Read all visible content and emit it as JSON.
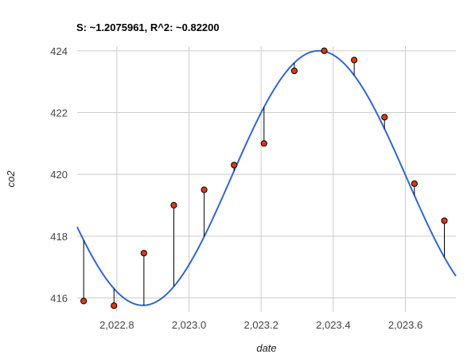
{
  "chart_data": {
    "type": "scatter",
    "title": "S: ~1.2075961, R^2: ~0.82200",
    "xlabel": "date",
    "ylabel": "co2",
    "xlim": [
      2022.69,
      2023.74
    ],
    "ylim": [
      415.55,
      424.15
    ],
    "x_ticks": [
      {
        "value": 2022.8,
        "label": "2,022.8"
      },
      {
        "value": 2023.0,
        "label": "2,023.0"
      },
      {
        "value": 2023.2,
        "label": "2,023.2"
      },
      {
        "value": 2023.4,
        "label": "2,023.4"
      },
      {
        "value": 2023.6,
        "label": "2,023.6"
      }
    ],
    "y_ticks": [
      {
        "value": 416,
        "label": "416"
      },
      {
        "value": 418,
        "label": "418"
      },
      {
        "value": 420,
        "label": "420"
      },
      {
        "value": 422,
        "label": "422"
      },
      {
        "value": 424,
        "label": "424"
      }
    ],
    "grid": true,
    "legend": "none",
    "points": [
      {
        "x": 2022.708,
        "y": 415.9
      },
      {
        "x": 2022.792,
        "y": 415.75
      },
      {
        "x": 2022.875,
        "y": 417.45
      },
      {
        "x": 2022.958,
        "y": 419.0
      },
      {
        "x": 2023.042,
        "y": 419.5
      },
      {
        "x": 2023.125,
        "y": 420.3
      },
      {
        "x": 2023.208,
        "y": 421.0
      },
      {
        "x": 2023.292,
        "y": 423.35
      },
      {
        "x": 2023.375,
        "y": 424.0
      },
      {
        "x": 2023.458,
        "y": 423.7
      },
      {
        "x": 2023.542,
        "y": 421.85
      },
      {
        "x": 2023.625,
        "y": 419.7
      },
      {
        "x": 2023.708,
        "y": 418.5
      }
    ],
    "fit": {
      "type": "sine",
      "mean": 419.88,
      "amplitude": 4.12,
      "period": 0.975,
      "peak_x": 2023.36
    },
    "colors": {
      "fit_line": "#3366cc",
      "point_fill": "#dc3912",
      "point_stroke": "#000000",
      "residual": "#000000",
      "grid": "#cccccc"
    }
  }
}
